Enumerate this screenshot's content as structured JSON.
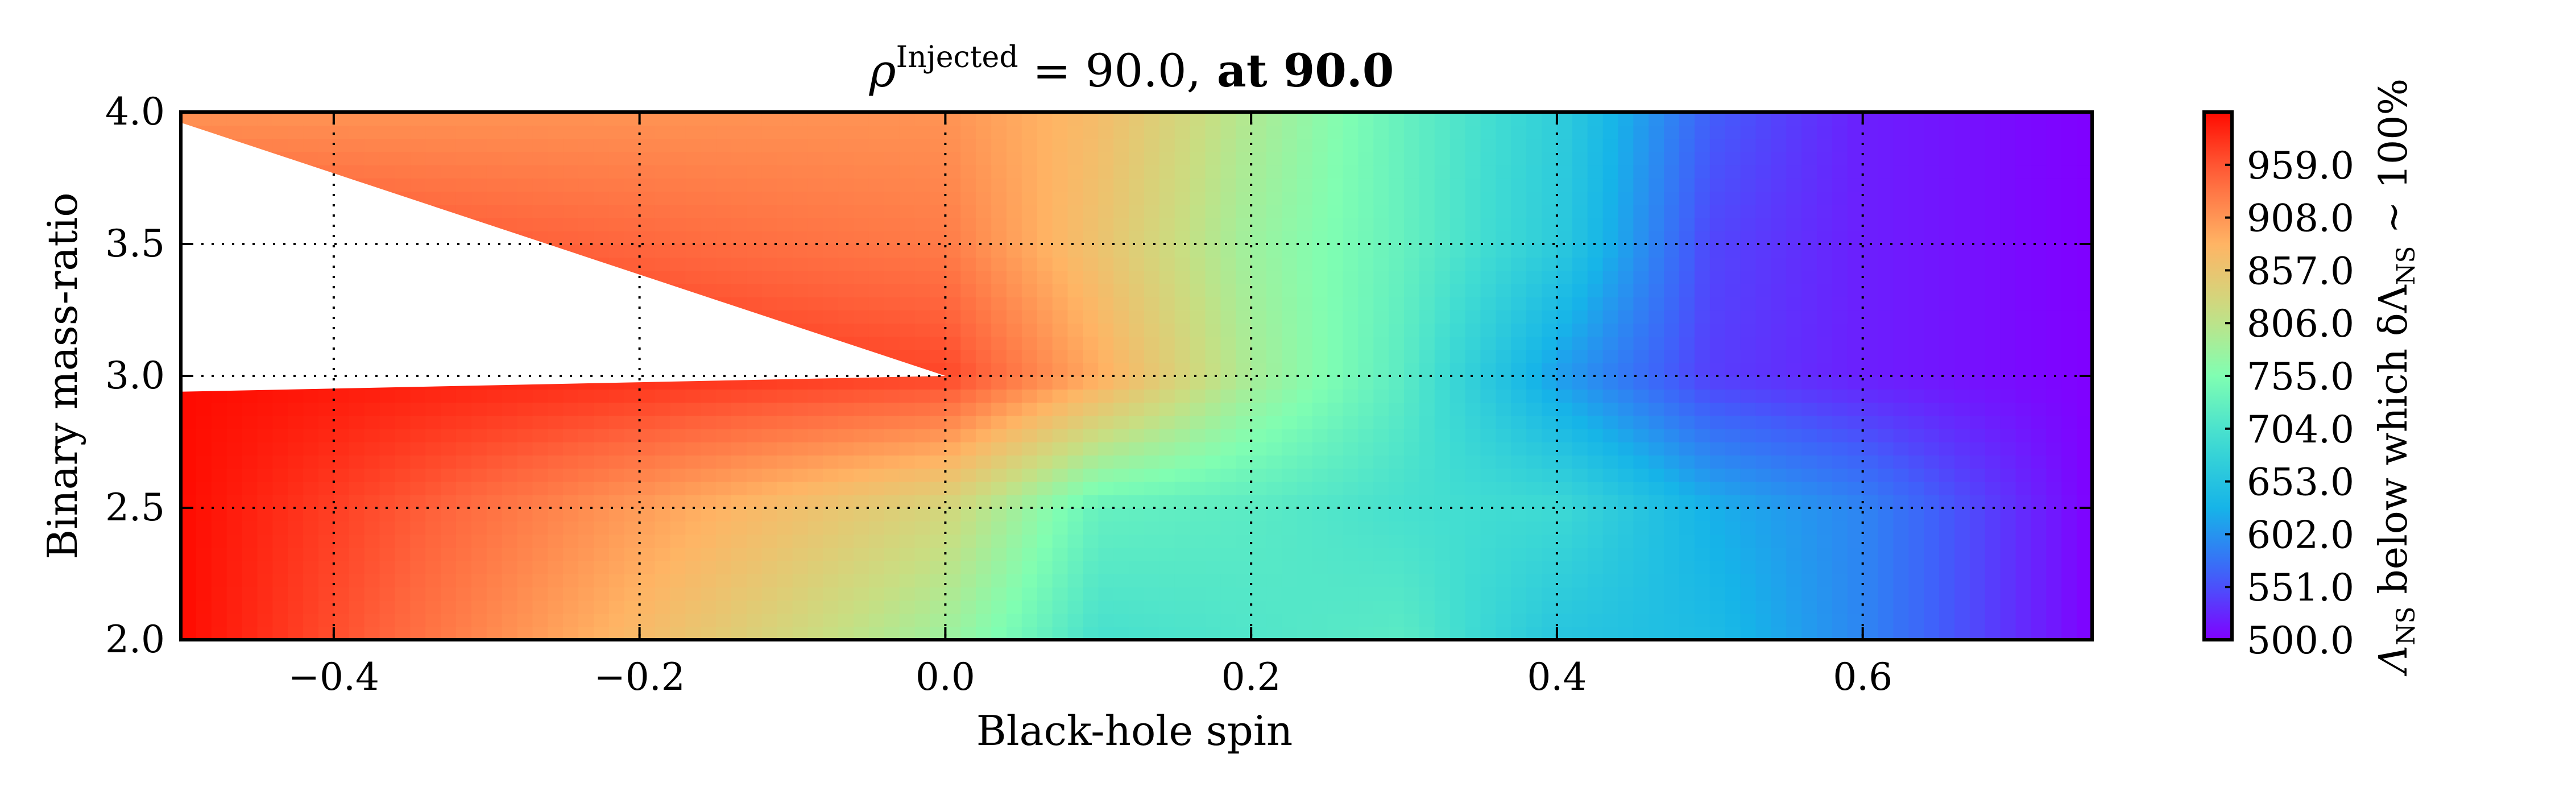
{
  "chart_data": {
    "type": "heatmap",
    "title": "ρ^Injected = 90.0, at 90.0",
    "title_parts": {
      "symbol": "ρ",
      "superscript": "Injected",
      "value": " = 90.0,",
      "tail": " at 90.0"
    },
    "xlabel": "Black-hole spin",
    "ylabel": "Binary mass-ratio",
    "colorbar_label": "Λ_NS below which δΛ_NS ~ 100%",
    "colorbar_label_parts": {
      "lambda": "Λ",
      "ns": "NS",
      "middle": " below which δΛ",
      "tail": " ~ 100%"
    },
    "xlim": [
      -0.5,
      0.75
    ],
    "ylim": [
      2.0,
      4.0
    ],
    "x_ticks": [
      -0.4,
      -0.2,
      0.0,
      0.2,
      0.4,
      0.6
    ],
    "x_tick_labels": [
      "−0.4",
      "−0.2",
      "0.0",
      "0.2",
      "0.4",
      "0.6"
    ],
    "y_ticks": [
      2.0,
      2.5,
      3.0,
      3.5,
      4.0
    ],
    "y_tick_labels": [
      "2.0",
      "2.5",
      "3.0",
      "3.5",
      "4.0"
    ],
    "grid": true,
    "colorscale": "rainbow",
    "color_range": [
      500.0,
      1010.0
    ],
    "colorbar_ticks": [
      500.0,
      551.0,
      602.0,
      653.0,
      704.0,
      755.0,
      806.0,
      857.0,
      908.0,
      959.0
    ],
    "colorbar_tick_labels": [
      "500.0",
      "551.0",
      "602.0",
      "653.0",
      "704.0",
      "755.0",
      "806.0",
      "857.0",
      "908.0",
      "959.0"
    ],
    "grid_x": [
      -0.5,
      0.0,
      0.1,
      0.2,
      0.3,
      0.4,
      0.5,
      0.6,
      0.75
    ],
    "grid_y": [
      2.0,
      2.5,
      3.0,
      3.5,
      4.0
    ],
    "z": [
      [
        1010,
        780,
        700,
        710,
        720,
        655,
        640,
        590,
        500
      ],
      [
        1010,
        830,
        730,
        720,
        700,
        690,
        625,
        590,
        500
      ],
      [
        1010,
        970,
        890,
        790,
        720,
        610,
        540,
        520,
        500
      ],
      [
        null,
        930,
        860,
        780,
        730,
        665,
        545,
        520,
        500
      ],
      [
        null,
        910,
        870,
        795,
        730,
        670,
        560,
        520,
        500
      ]
    ],
    "no_data_region": "white wedge for spin < 0.0 around mass-ratio 3.0 to 4.0"
  }
}
